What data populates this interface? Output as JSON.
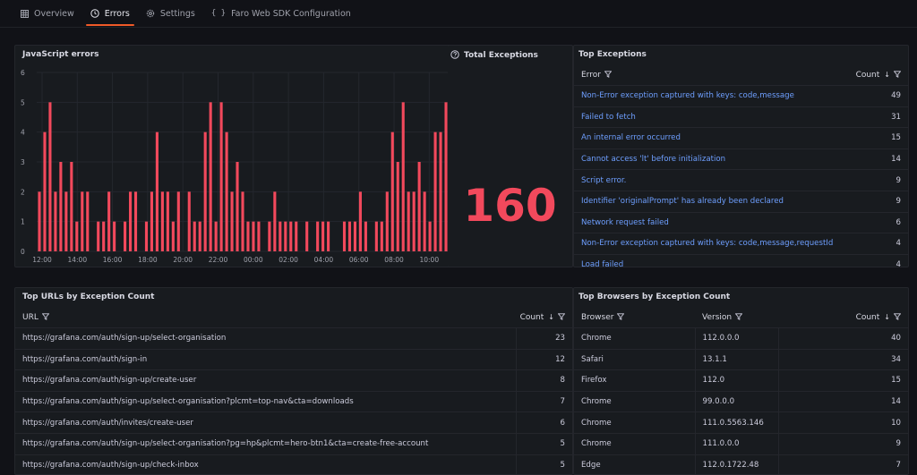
{
  "tabs": [
    {
      "label": "Overview",
      "icon": "grid-icon"
    },
    {
      "label": "Errors",
      "icon": "clock-icon"
    },
    {
      "label": "Settings",
      "icon": "gear-icon"
    },
    {
      "label": "Faro Web SDK Configuration",
      "icon": "braces-icon"
    }
  ],
  "js_errors": {
    "title": "JavaScript errors"
  },
  "total_exceptions": {
    "title": "Total Exceptions",
    "value": "160"
  },
  "top_exceptions": {
    "title": "Top Exceptions",
    "col_error": "Error",
    "col_count": "Count",
    "rows": [
      {
        "error": "Non-Error exception captured with keys: code,message",
        "count": "49"
      },
      {
        "error": "Failed to fetch",
        "count": "31"
      },
      {
        "error": "An internal error occurred",
        "count": "15"
      },
      {
        "error": "Cannot access 'lt' before initialization",
        "count": "14"
      },
      {
        "error": "Script error.",
        "count": "9"
      },
      {
        "error": "Identifier 'originalPrompt' has already been declared",
        "count": "9"
      },
      {
        "error": "Network request failed",
        "count": "6"
      },
      {
        "error": "Non-Error exception captured with keys: code,message,requestId",
        "count": "4"
      },
      {
        "error": "Load failed",
        "count": "4"
      }
    ]
  },
  "top_urls": {
    "title": "Top URLs by Exception Count",
    "col_url": "URL",
    "col_count": "Count",
    "rows": [
      {
        "url": "https://grafana.com/auth/sign-up/select-organisation",
        "count": "23"
      },
      {
        "url": "https://grafana.com/auth/sign-in",
        "count": "12"
      },
      {
        "url": "https://grafana.com/auth/sign-up/create-user",
        "count": "8"
      },
      {
        "url": "https://grafana.com/auth/sign-up/select-organisation?plcmt=top-nav&cta=downloads",
        "count": "7"
      },
      {
        "url": "https://grafana.com/auth/invites/create-user",
        "count": "6"
      },
      {
        "url": "https://grafana.com/auth/sign-up/select-organisation?pg=hp&plcmt=hero-btn1&cta=create-free-account",
        "count": "5"
      },
      {
        "url": "https://grafana.com/auth/sign-up/check-inbox",
        "count": "5"
      }
    ]
  },
  "top_browsers": {
    "title": "Top Browsers by Exception Count",
    "col_browser": "Browser",
    "col_version": "Version",
    "col_count": "Count",
    "rows": [
      {
        "browser": "Chrome",
        "version": "112.0.0.0",
        "count": "40"
      },
      {
        "browser": "Safari",
        "version": "13.1.1",
        "count": "34"
      },
      {
        "browser": "Firefox",
        "version": "112.0",
        "count": "15"
      },
      {
        "browser": "Chrome",
        "version": "99.0.0.0",
        "count": "14"
      },
      {
        "browser": "Chrome",
        "version": "111.0.5563.146",
        "count": "10"
      },
      {
        "browser": "Chrome",
        "version": "111.0.0.0",
        "count": "9"
      },
      {
        "browser": "Edge",
        "version": "112.0.1722.48",
        "count": "7"
      }
    ]
  },
  "colors": {
    "bar": "#f2495c",
    "accent": "#f05a28",
    "link": "#6e9fff"
  },
  "chart_data": {
    "type": "bar",
    "title": "JavaScript errors",
    "ylim": [
      0,
      6
    ],
    "yticks": [
      "0",
      "1",
      "2",
      "3",
      "4",
      "5",
      "6"
    ],
    "xticks": [
      "12:00",
      "14:00",
      "16:00",
      "18:00",
      "20:00",
      "22:00",
      "00:00",
      "02:00",
      "04:00",
      "06:00",
      "08:00",
      "10:00"
    ],
    "values": [
      2,
      4,
      5,
      2,
      3,
      2,
      3,
      1,
      2,
      2,
      0,
      1,
      1,
      2,
      1,
      0,
      1,
      2,
      2,
      0,
      1,
      2,
      4,
      2,
      2,
      1,
      2,
      0,
      2,
      1,
      1,
      4,
      5,
      1,
      5,
      4,
      2,
      3,
      2,
      1,
      1,
      1,
      0,
      1,
      2,
      1,
      1,
      1,
      1,
      0,
      1,
      0,
      1,
      1,
      1,
      0,
      0,
      1,
      1,
      1,
      2,
      1,
      0,
      1,
      1,
      2,
      4,
      3,
      5,
      2,
      2,
      3,
      2,
      1,
      4,
      4,
      5
    ]
  }
}
